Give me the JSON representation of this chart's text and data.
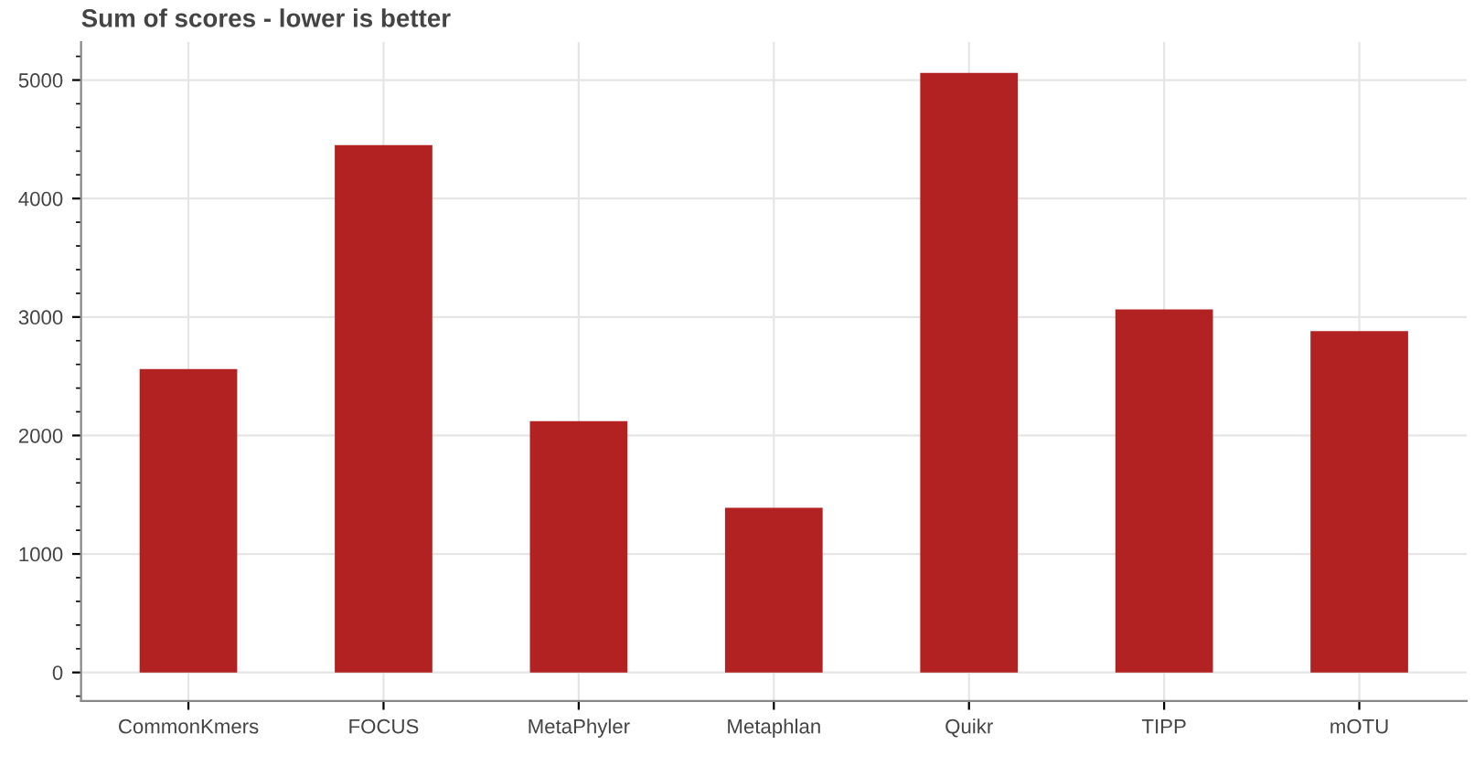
{
  "chart_data": {
    "type": "bar",
    "title": "Sum of scores - lower is better",
    "categories": [
      "CommonKmers",
      "FOCUS",
      "MetaPhyler",
      "Metaphlan",
      "Quikr",
      "TIPP",
      "mOTU"
    ],
    "values": [
      2560,
      4450,
      2120,
      1390,
      5060,
      3065,
      2880
    ],
    "color": "#b22222",
    "ylim": [
      -240,
      5320
    ],
    "yticks": [
      0,
      1000,
      2000,
      3000,
      4000,
      5000
    ],
    "grid": true
  }
}
